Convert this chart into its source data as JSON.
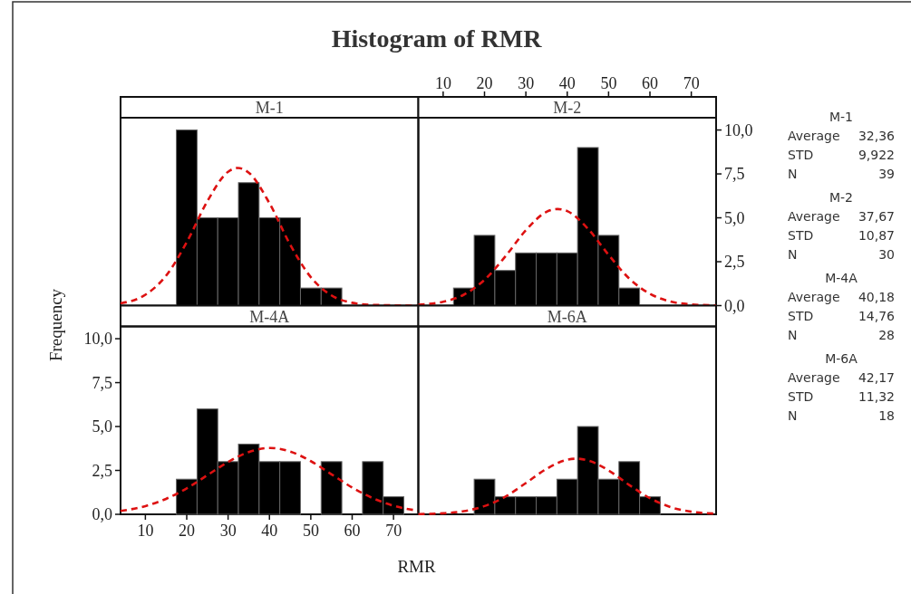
{
  "chart_data": [
    {
      "type": "histogram",
      "title": "Histogram of RMR",
      "subtitle": "M-1",
      "color": "#000000",
      "bins": [
        17.5,
        22.5,
        27.5,
        32.5,
        37.5,
        42.5,
        47.5,
        52.5,
        57.5
      ],
      "values": [
        10,
        5,
        5,
        7,
        5,
        5,
        1,
        1
      ],
      "xlim": [
        4,
        76
      ],
      "ylim": [
        0,
        10.7
      ],
      "series": [
        {
          "type": "line",
          "color": "#dd1111",
          "line_style": "dashed",
          "x": [
            4,
            10,
            15,
            20,
            25,
            30,
            32.36,
            35,
            40,
            45,
            50,
            55,
            60,
            65,
            76
          ],
          "values": [
            0.13,
            0.62,
            1.7,
            3.61,
            5.95,
            7.62,
            7.84,
            7.57,
            5.83,
            3.48,
            1.62,
            0.58,
            0.16,
            0.04,
            0
          ]
        }
      ]
    },
    {
      "type": "histogram",
      "subtitle": "M-2",
      "color": "#000000",
      "bins": [
        12.5,
        17.5,
        22.5,
        27.5,
        32.5,
        37.5,
        42.5,
        47.5,
        52.5,
        57.5
      ],
      "values": [
        1,
        4,
        2,
        3,
        3,
        3,
        9,
        4,
        1
      ],
      "xlim": [
        4,
        76
      ],
      "ylim": [
        0,
        10.7
      ],
      "xticks": [
        10,
        20,
        30,
        40,
        50,
        60,
        70
      ],
      "yticks": [
        {
          "value": 0,
          "label": "0,0"
        },
        {
          "value": 2.5,
          "label": "2,5"
        },
        {
          "value": 5,
          "label": "5,0"
        },
        {
          "value": 7.5,
          "label": "7,5"
        },
        {
          "value": 10,
          "label": "10,0"
        }
      ],
      "series": [
        {
          "type": "line",
          "color": "#dd1111",
          "line_style": "dashed",
          "x": [
            4,
            10,
            15,
            20,
            25,
            30,
            35,
            37.67,
            40,
            45,
            50,
            55,
            60,
            65,
            70,
            76
          ],
          "values": [
            0.05,
            0.22,
            0.62,
            1.47,
            2.79,
            4.29,
            5.34,
            5.5,
            5.38,
            4.38,
            2.89,
            1.54,
            0.67,
            0.23,
            0.07,
            0.01
          ]
        }
      ]
    },
    {
      "type": "histogram",
      "subtitle": "M-4A",
      "xlabel": "RMR",
      "ylabel": "Frequency",
      "color": "#000000",
      "bins": [
        17.5,
        22.5,
        27.5,
        32.5,
        37.5,
        42.5,
        47.5,
        52.5,
        57.5,
        62.5,
        67.5,
        72.5
      ],
      "values": [
        2,
        6,
        3,
        4,
        3,
        3,
        0,
        3,
        0,
        3,
        1
      ],
      "xlim": [
        4,
        76
      ],
      "ylim": [
        0,
        10.7
      ],
      "xticks": [
        10,
        20,
        30,
        40,
        50,
        60,
        70
      ],
      "yticks": [
        {
          "value": 0,
          "label": "0,0"
        },
        {
          "value": 2.5,
          "label": "2,5"
        },
        {
          "value": 5,
          "label": "5,0"
        },
        {
          "value": 7.5,
          "label": "7,5"
        },
        {
          "value": 10,
          "label": "10,0"
        }
      ],
      "series": [
        {
          "type": "line",
          "color": "#dd1111",
          "line_style": "dashed",
          "x": [
            4,
            10,
            15,
            20,
            25,
            30,
            35,
            40.18,
            45,
            50,
            55,
            60,
            65,
            70,
            76
          ],
          "values": [
            0.19,
            0.47,
            0.88,
            1.48,
            2.23,
            2.98,
            3.55,
            3.78,
            3.58,
            3.03,
            2.28,
            1.53,
            0.92,
            0.49,
            0.2
          ]
        }
      ]
    },
    {
      "type": "histogram",
      "subtitle": "M-6A",
      "color": "#000000",
      "bins": [
        17.5,
        22.5,
        27.5,
        32.5,
        37.5,
        42.5,
        47.5,
        52.5,
        57.5,
        62.5
      ],
      "values": [
        2,
        1,
        1,
        1,
        2,
        5,
        2,
        3,
        1
      ],
      "xlim": [
        4,
        76
      ],
      "ylim": [
        0,
        10.7
      ],
      "series": [
        {
          "type": "line",
          "color": "#dd1111",
          "line_style": "dashed",
          "x": [
            4,
            10,
            15,
            20,
            25,
            30,
            35,
            40,
            42.17,
            45,
            50,
            55,
            60,
            65,
            70,
            76
          ],
          "values": [
            0.01,
            0.06,
            0.18,
            0.47,
            1,
            1.78,
            2.59,
            3.11,
            3.17,
            3.07,
            2.5,
            1.67,
            0.92,
            0.41,
            0.15,
            0.04
          ]
        }
      ]
    },
    {
      "type": "other",
      "annotations": [
        "M-1",
        "Average",
        "32,36",
        "STD",
        "9,922",
        "N",
        "39",
        "M-2",
        "Average",
        "37,67",
        "STD",
        "10,87",
        "N",
        "30",
        "M-4A",
        "Average",
        "40,18",
        "STD",
        "14,76",
        "N",
        "28",
        "M-6A",
        "Average",
        "42,17",
        "STD",
        "11,32",
        "N",
        "18"
      ]
    }
  ]
}
